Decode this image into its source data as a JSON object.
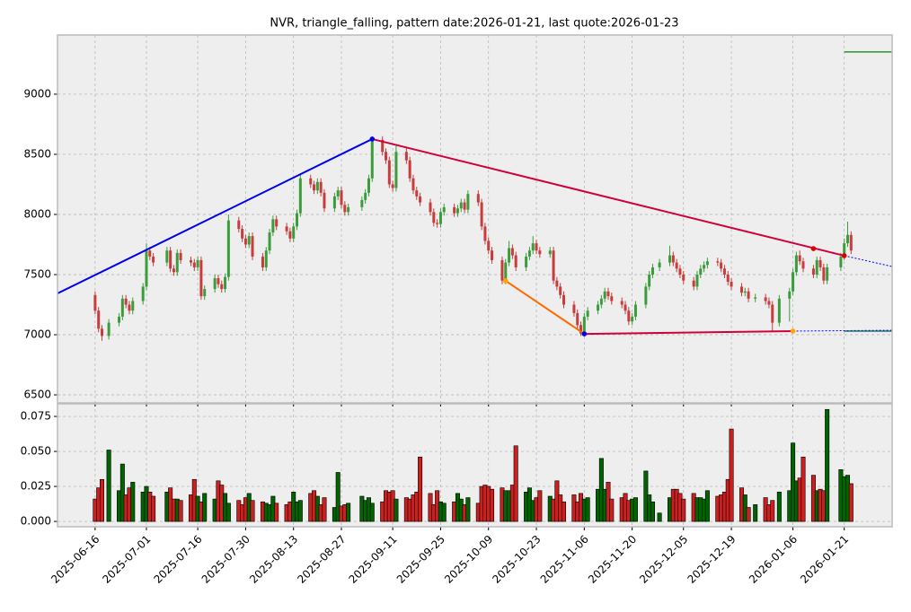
{
  "chart_data": {
    "type": "candlestick",
    "title": "NVR, triangle_falling, pattern date:2026-01-21, last quote:2026-01-23",
    "x": [
      "2025-06-16",
      "2025-06-17",
      "2025-06-18",
      "2025-06-20",
      "2025-06-23",
      "2025-06-24",
      "2025-06-25",
      "2025-06-26",
      "2025-06-27",
      "2025-06-30",
      "2025-07-01",
      "2025-07-02",
      "2025-07-03",
      "2025-07-07",
      "2025-07-08",
      "2025-07-09",
      "2025-07-10",
      "2025-07-11",
      "2025-07-14",
      "2025-07-15",
      "2025-07-16",
      "2025-07-17",
      "2025-07-18",
      "2025-07-21",
      "2025-07-22",
      "2025-07-23",
      "2025-07-24",
      "2025-07-25",
      "2025-07-28",
      "2025-07-29",
      "2025-07-30",
      "2025-07-31",
      "2025-08-01",
      "2025-08-04",
      "2025-08-05",
      "2025-08-06",
      "2025-08-07",
      "2025-08-08",
      "2025-08-11",
      "2025-08-12",
      "2025-08-13",
      "2025-08-14",
      "2025-08-15",
      "2025-08-18",
      "2025-08-19",
      "2025-08-20",
      "2025-08-21",
      "2025-08-22",
      "2025-08-25",
      "2025-08-26",
      "2025-08-27",
      "2025-08-28",
      "2025-08-29",
      "2025-09-02",
      "2025-09-03",
      "2025-09-04",
      "2025-09-05",
      "2025-09-08",
      "2025-09-09",
      "2025-09-10",
      "2025-09-11",
      "2025-09-12",
      "2025-09-15",
      "2025-09-16",
      "2025-09-17",
      "2025-09-18",
      "2025-09-19",
      "2025-09-22",
      "2025-09-23",
      "2025-09-24",
      "2025-09-25",
      "2025-09-26",
      "2025-09-29",
      "2025-09-30",
      "2025-10-01",
      "2025-10-02",
      "2025-10-03",
      "2025-10-06",
      "2025-10-07",
      "2025-10-08",
      "2025-10-09",
      "2025-10-10",
      "2025-10-13",
      "2025-10-14",
      "2025-10-15",
      "2025-10-16",
      "2025-10-17",
      "2025-10-20",
      "2025-10-21",
      "2025-10-22",
      "2025-10-23",
      "2025-10-24",
      "2025-10-27",
      "2025-10-28",
      "2025-10-29",
      "2025-10-30",
      "2025-10-31",
      "2025-11-03",
      "2025-11-04",
      "2025-11-05",
      "2025-11-06",
      "2025-11-07",
      "2025-11-10",
      "2025-11-11",
      "2025-11-12",
      "2025-11-13",
      "2025-11-14",
      "2025-11-17",
      "2025-11-18",
      "2025-11-19",
      "2025-11-20",
      "2025-11-21",
      "2025-11-24",
      "2025-11-25",
      "2025-11-26",
      "2025-11-28",
      "2025-12-01",
      "2025-12-02",
      "2025-12-03",
      "2025-12-04",
      "2025-12-05",
      "2025-12-08",
      "2025-12-09",
      "2025-12-10",
      "2025-12-11",
      "2025-12-12",
      "2025-12-15",
      "2025-12-16",
      "2025-12-17",
      "2025-12-18",
      "2025-12-19",
      "2025-12-22",
      "2025-12-23",
      "2025-12-24",
      "2025-12-26",
      "2025-12-29",
      "2025-12-30",
      "2025-12-31",
      "2026-01-02",
      "2026-01-05",
      "2026-01-06",
      "2026-01-07",
      "2026-01-08",
      "2026-01-09",
      "2026-01-12",
      "2026-01-13",
      "2026-01-14",
      "2026-01-15",
      "2026-01-16",
      "2026-01-20",
      "2026-01-21",
      "2026-01-22",
      "2026-01-23"
    ],
    "open": [
      7330,
      7200,
      7050,
      6990,
      7100,
      7150,
      7300,
      7250,
      7200,
      7280,
      7400,
      7700,
      7650,
      7600,
      7700,
      7550,
      7520,
      7680,
      7620,
      7600,
      7560,
      7620,
      7320,
      7380,
      7470,
      7420,
      7380,
      7480,
      7950,
      7880,
      7800,
      7750,
      7820,
      7650,
      7560,
      7700,
      7850,
      7960,
      7900,
      7860,
      7800,
      7900,
      8010,
      8300,
      8250,
      8200,
      8270,
      8180,
      8050,
      8150,
      8200,
      8080,
      8020,
      8060,
      8120,
      8180,
      8300,
      8620,
      8520,
      8450,
      8250,
      8220,
      8520,
      8450,
      8300,
      8200,
      8150,
      8100,
      8020,
      7930,
      7920,
      8020,
      8060,
      8010,
      8050,
      8100,
      8040,
      8170,
      8100,
      7900,
      7780,
      7700,
      7620,
      7450,
      7600,
      7720,
      7660,
      7560,
      7650,
      7700,
      7760,
      7700,
      7670,
      7700,
      7450,
      7400,
      7330,
      7250,
      7180,
      7080,
      7010,
      7150,
      7200,
      7250,
      7300,
      7360,
      7320,
      7280,
      7250,
      7200,
      7110,
      7150,
      7250,
      7400,
      7500,
      7560,
      7600,
      7660,
      7600,
      7550,
      7500,
      7450,
      7400,
      7500,
      7550,
      7580,
      7610,
      7600,
      7550,
      7500,
      7440,
      7400,
      7350,
      7360,
      7300,
      7310,
      7280,
      7250,
      7100,
      7300,
      7360,
      7520,
      7660,
      7610,
      7550,
      7500,
      7620,
      7560,
      7450,
      7560,
      7650,
      7760,
      7830
    ],
    "high": [
      7360,
      7230,
      7080,
      7130,
      7180,
      7330,
      7330,
      7280,
      7310,
      7430,
      7760,
      7730,
      7680,
      7730,
      7730,
      7580,
      7710,
      7710,
      7650,
      7630,
      7650,
      7650,
      7410,
      7500,
      7500,
      7450,
      7510,
      8000,
      7980,
      7910,
      7830,
      7850,
      7850,
      7680,
      7730,
      7880,
      7990,
      7990,
      7930,
      7890,
      7930,
      8040,
      8340,
      8330,
      8280,
      8300,
      8300,
      8210,
      8180,
      8230,
      8230,
      8110,
      8090,
      8150,
      8210,
      8330,
      8650,
      8650,
      8550,
      8480,
      8280,
      8570,
      8550,
      8480,
      8330,
      8230,
      8180,
      8130,
      8050,
      7960,
      8050,
      8090,
      8090,
      8080,
      8130,
      8130,
      8200,
      8200,
      8130,
      7930,
      7810,
      7730,
      7650,
      7630,
      7780,
      7750,
      7690,
      7680,
      7730,
      7820,
      7790,
      7730,
      7730,
      7730,
      7480,
      7430,
      7360,
      7280,
      7210,
      7110,
      7180,
      7230,
      7280,
      7330,
      7390,
      7390,
      7350,
      7310,
      7280,
      7230,
      7180,
      7280,
      7430,
      7530,
      7590,
      7630,
      7740,
      7690,
      7630,
      7580,
      7530,
      7480,
      7530,
      7580,
      7610,
      7640,
      7640,
      7630,
      7580,
      7530,
      7470,
      7430,
      7390,
      7390,
      7340,
      7340,
      7310,
      7280,
      7330,
      7390,
      7550,
      7690,
      7700,
      7640,
      7580,
      7650,
      7650,
      7590,
      7590,
      7680,
      7800,
      7940,
      7860
    ],
    "low": [
      7170,
      7020,
      6950,
      6960,
      7070,
      7120,
      7220,
      7170,
      7170,
      7250,
      7370,
      7620,
      7570,
      7570,
      7520,
      7490,
      7490,
      7590,
      7570,
      7530,
      7530,
      7290,
      7290,
      7350,
      7390,
      7350,
      7350,
      7450,
      7850,
      7770,
      7720,
      7720,
      7620,
      7530,
      7530,
      7670,
      7820,
      7870,
      7830,
      7770,
      7770,
      7870,
      7980,
      8220,
      8170,
      8170,
      8150,
      8020,
      8020,
      8120,
      8050,
      7990,
      7990,
      8030,
      8090,
      8150,
      8270,
      8490,
      8420,
      8220,
      8190,
      8190,
      8420,
      8270,
      8170,
      8120,
      8070,
      7990,
      7900,
      7890,
      7890,
      7990,
      7980,
      7980,
      8020,
      8010,
      8010,
      8070,
      7870,
      7750,
      7670,
      7590,
      7420,
      7420,
      7570,
      7630,
      7530,
      7530,
      7620,
      7670,
      7670,
      7640,
      7640,
      7420,
      7370,
      7300,
      7220,
      7150,
      7050,
      6990,
      6990,
      7120,
      7170,
      7220,
      7270,
      7290,
      7250,
      7220,
      7170,
      7080,
      7080,
      7120,
      7220,
      7370,
      7470,
      7530,
      7570,
      7570,
      7520,
      7470,
      7420,
      7370,
      7370,
      7470,
      7520,
      7550,
      7570,
      7520,
      7470,
      7410,
      7370,
      7320,
      7320,
      7270,
      7270,
      7250,
      7220,
      7030,
      7070,
      7110,
      7330,
      7490,
      7580,
      7520,
      7470,
      7470,
      7530,
      7420,
      7420,
      7530,
      7620,
      7730,
      7670
    ],
    "close": [
      7200,
      7050,
      6990,
      7100,
      7150,
      7300,
      7250,
      7200,
      7280,
      7400,
      7700,
      7650,
      7600,
      7700,
      7550,
      7520,
      7680,
      7620,
      7600,
      7560,
      7620,
      7320,
      7380,
      7470,
      7420,
      7380,
      7480,
      7950,
      7880,
      7800,
      7750,
      7820,
      7650,
      7560,
      7700,
      7850,
      7960,
      7900,
      7860,
      7800,
      7900,
      8010,
      8300,
      8250,
      8200,
      8270,
      8180,
      8050,
      8150,
      8200,
      8080,
      8020,
      8060,
      8120,
      8180,
      8300,
      8620,
      8520,
      8450,
      8250,
      8220,
      8520,
      8450,
      8300,
      8200,
      8150,
      8100,
      8020,
      7930,
      7920,
      8020,
      8060,
      8010,
      8050,
      8100,
      8040,
      8170,
      8100,
      7900,
      7780,
      7700,
      7620,
      7450,
      7600,
      7720,
      7660,
      7560,
      7650,
      7700,
      7760,
      7700,
      7670,
      7700,
      7450,
      7400,
      7330,
      7250,
      7180,
      7080,
      7010,
      7150,
      7200,
      7250,
      7300,
      7360,
      7320,
      7280,
      7250,
      7200,
      7110,
      7150,
      7250,
      7400,
      7500,
      7560,
      7600,
      7660,
      7600,
      7550,
      7500,
      7450,
      7400,
      7500,
      7550,
      7580,
      7610,
      7600,
      7550,
      7500,
      7440,
      7400,
      7350,
      7360,
      7300,
      7310,
      7280,
      7250,
      7100,
      7300,
      7360,
      7520,
      7660,
      7610,
      7550,
      7500,
      7620,
      7560,
      7450,
      7560,
      7650,
      7760,
      7830,
      7700
    ],
    "volume": [
      0.016,
      0.024,
      0.03,
      0.051,
      0.022,
      0.041,
      0.019,
      0.024,
      0.028,
      0.021,
      0.025,
      0.021,
      0.018,
      0.021,
      0.024,
      0.016,
      0.016,
      0.015,
      0.019,
      0.03,
      0.018,
      0.014,
      0.02,
      0.016,
      0.029,
      0.026,
      0.02,
      0.013,
      0.015,
      0.012,
      0.017,
      0.02,
      0.015,
      0.014,
      0.013,
      0.012,
      0.018,
      0.013,
      0.012,
      0.014,
      0.021,
      0.014,
      0.015,
      0.02,
      0.022,
      0.018,
      0.012,
      0.017,
      0.01,
      0.035,
      0.011,
      0.012,
      0.013,
      0.018,
      0.015,
      0.017,
      0.013,
      0.014,
      0.022,
      0.021,
      0.022,
      0.016,
      0.017,
      0.016,
      0.019,
      0.021,
      0.046,
      0.02,
      0.012,
      0.022,
      0.014,
      0.013,
      0.014,
      0.02,
      0.016,
      0.012,
      0.017,
      0.013,
      0.025,
      0.026,
      0.025,
      0.023,
      0.024,
      0.022,
      0.022,
      0.026,
      0.054,
      0.021,
      0.024,
      0.015,
      0.017,
      0.022,
      0.018,
      0.016,
      0.029,
      0.019,
      0.014,
      0.019,
      0.014,
      0.02,
      0.016,
      0.017,
      0.023,
      0.045,
      0.023,
      0.028,
      0.016,
      0.017,
      0.02,
      0.015,
      0.016,
      0.017,
      0.036,
      0.019,
      0.014,
      0.006,
      0.017,
      0.023,
      0.023,
      0.02,
      0.016,
      0.02,
      0.017,
      0.017,
      0.016,
      0.022,
      0.018,
      0.019,
      0.021,
      0.03,
      0.066,
      0.024,
      0.019,
      0.01,
      0.012,
      0.017,
      0.012,
      0.015,
      0.021,
      0.022,
      0.056,
      0.029,
      0.031,
      0.046,
      0.033,
      0.022,
      0.023,
      0.022,
      0.08,
      0.037,
      0.032,
      0.033,
      0.027
    ],
    "up_color": "#3c9c3c",
    "down_color": "#c83c3c",
    "volume_up_color": "#006400",
    "volume_down_color": "#cc1f1f",
    "xlim": [
      "2025-06-05",
      "2026-02-04"
    ],
    "xticks": [
      "2025-06-16",
      "2025-07-01",
      "2025-07-16",
      "2025-07-30",
      "2025-08-13",
      "2025-08-27",
      "2025-09-11",
      "2025-09-25",
      "2025-10-09",
      "2025-10-23",
      "2025-11-06",
      "2025-11-20",
      "2025-12-05",
      "2025-12-19",
      "2026-01-06",
      "2026-01-21"
    ],
    "ylim": [
      6433,
      9492
    ],
    "yticks": [
      6500,
      7000,
      7500,
      8000,
      8500,
      9000
    ],
    "volume_ylim": [
      -0.0038,
      0.084
    ],
    "volume_yticks": [
      {
        "value": 0,
        "label": "0.000"
      },
      0.025,
      {
        "value": 0.05,
        "label": "0.050"
      },
      0.075
    ],
    "grid": true,
    "lines": [
      {
        "color": "#0000ee",
        "x": [
          "2025-06-05",
          "2025-09-05"
        ],
        "y": [
          7343,
          8627
        ]
      },
      {
        "color": "#d0003a",
        "x": [
          "2025-09-05",
          "2026-01-21"
        ],
        "y": [
          8627,
          7657
        ]
      },
      {
        "color": "#0000ee",
        "dash": true,
        "x": [
          "2026-01-21",
          "2026-02-04"
        ],
        "y": [
          7657,
          7567
        ]
      },
      {
        "color": "#ff6a00",
        "x": [
          "2025-10-14",
          "2025-11-06"
        ],
        "y": [
          7448,
          7007
        ]
      },
      {
        "color": "#d0003a",
        "x": [
          "2025-11-06",
          "2026-01-06"
        ],
        "y": [
          7007,
          7030
        ]
      },
      {
        "color": "#0000ee",
        "dash": true,
        "x": [
          "2026-01-06",
          "2026-02-04"
        ],
        "y": [
          7030,
          7037
        ]
      }
    ],
    "levels": [
      {
        "color": "#008000",
        "x": [
          "2026-01-21",
          "2026-02-04"
        ],
        "y": 9351
      },
      {
        "color": "#005f5f",
        "x": [
          "2026-01-21",
          "2026-02-04"
        ],
        "y": 7030
      }
    ],
    "points": [
      {
        "color": "#0000ee",
        "x": "2025-09-05",
        "y": 8627
      },
      {
        "color": "#0000ee",
        "x": "2025-11-06",
        "y": 7007
      },
      {
        "color": "#ffa500",
        "x": "2025-10-14",
        "y": 7448
      },
      {
        "color": "#ffa500",
        "x": "2026-01-06",
        "y": 7030
      },
      {
        "color": "#dd0000",
        "x": "2026-01-12",
        "y": 7716
      },
      {
        "color": "#dd0000",
        "x": "2026-01-21",
        "y": 7657
      }
    ]
  }
}
